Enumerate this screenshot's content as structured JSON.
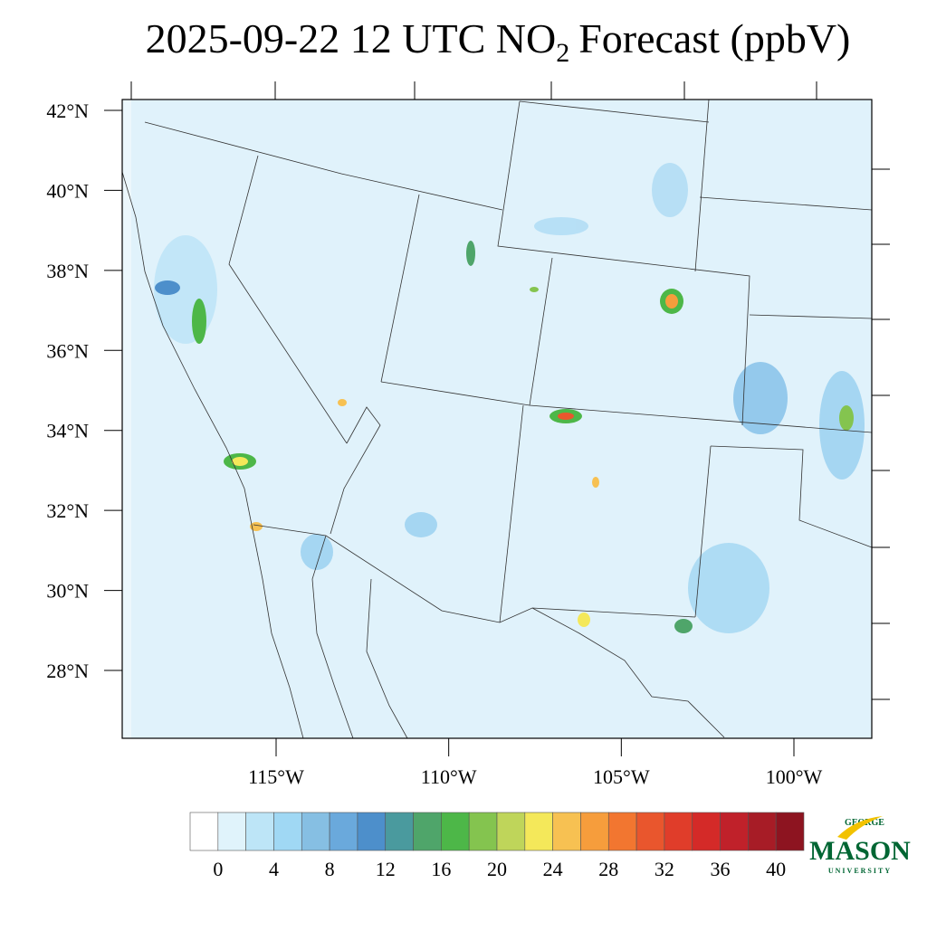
{
  "header": {
    "title_prefix": "2025-09-22 12 UTC NO",
    "title_subscript": "2",
    "title_suffix": "Forecast (ppbV)"
  },
  "map": {
    "lat_ticks": [
      {
        "value": 42,
        "label": "42°N"
      },
      {
        "value": 40,
        "label": "40°N"
      },
      {
        "value": 38,
        "label": "38°N"
      },
      {
        "value": 36,
        "label": "36°N"
      },
      {
        "value": 34,
        "label": "34°N"
      },
      {
        "value": 32,
        "label": "32°N"
      },
      {
        "value": 30,
        "label": "30°N"
      },
      {
        "value": 28,
        "label": "28°N"
      }
    ],
    "lon_ticks": [
      {
        "value": -115,
        "label": "115°W"
      },
      {
        "value": -110,
        "label": "110°W"
      },
      {
        "value": -105,
        "label": "105°W"
      },
      {
        "value": -100,
        "label": "100°W"
      }
    ]
  },
  "colorbar": {
    "ticks": [
      0,
      4,
      8,
      12,
      16,
      20,
      24,
      28,
      32,
      36,
      40
    ],
    "colors": [
      "#ffffff",
      "#e0f3fb",
      "#bde5f7",
      "#a0d8f4",
      "#86bfe3",
      "#6aa9dc",
      "#4d8fcb",
      "#4a9a9e",
      "#4fa56a",
      "#4db748",
      "#84c44f",
      "#bfd55a",
      "#f4e85a",
      "#f7c152",
      "#f69d3c",
      "#f27630",
      "#e9562d",
      "#e03d2a",
      "#d42a28",
      "#c0212a",
      "#a71c26",
      "#8d1420"
    ]
  },
  "logo": {
    "top": "GEORGE",
    "main": "MASON",
    "bottom": "UNIVERSITY"
  }
}
